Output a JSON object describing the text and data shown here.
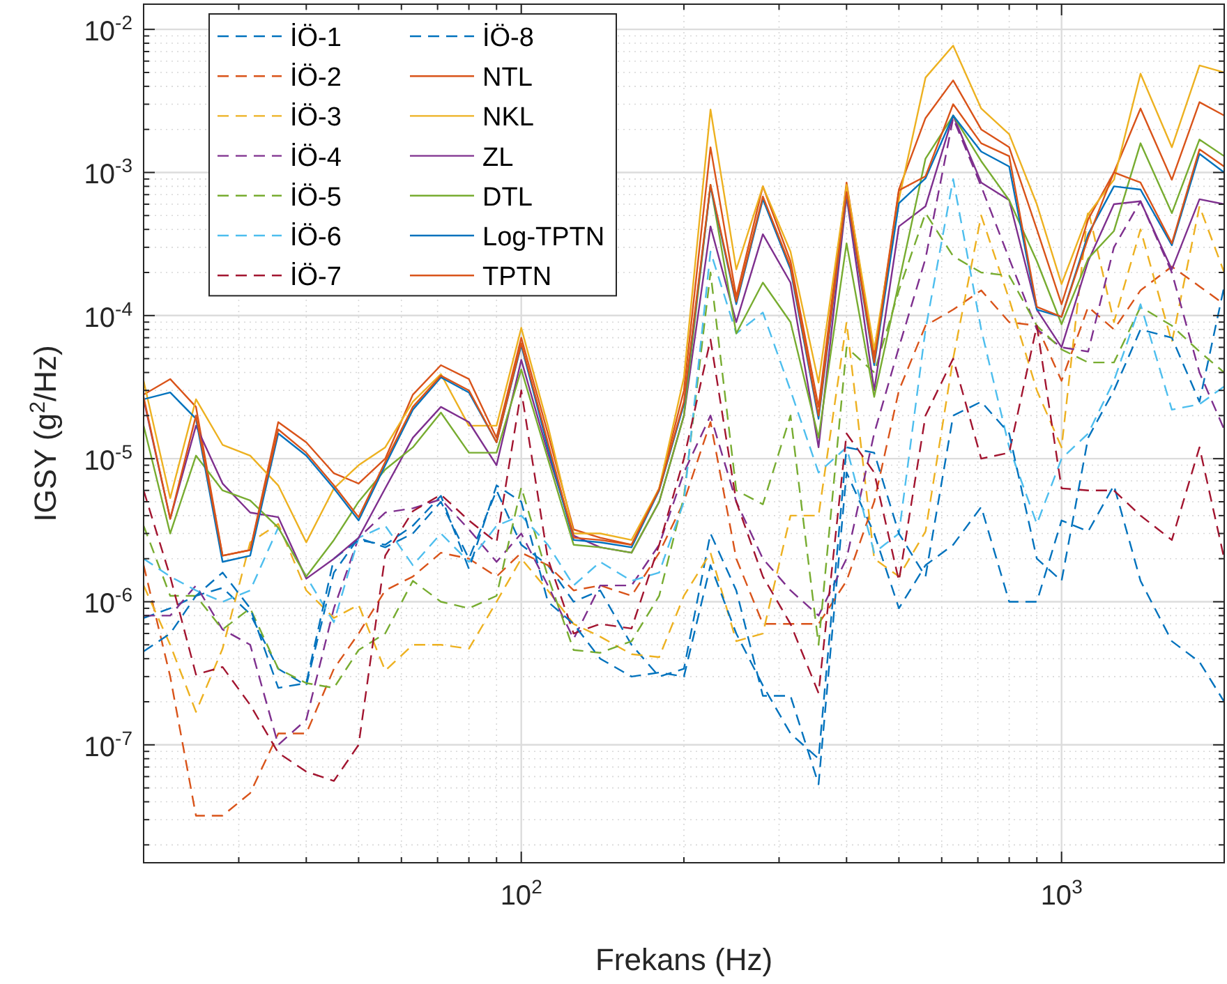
{
  "chart_data": {
    "type": "line",
    "xlabel": "Frekans (Hz)",
    "ylabel": "IGSY (g$^{2}$/Hz)",
    "log": "xy",
    "grid": true,
    "legend": "top left",
    "xlim": [
      20,
      2000
    ],
    "ylim": [
      1.5e-08,
      0.015
    ],
    "xticks": [
      {
        "value": 20,
        "label": null
      },
      {
        "value": 30,
        "label": null
      },
      {
        "value": 40,
        "label": null
      },
      {
        "value": 50,
        "label": null
      },
      {
        "value": 60,
        "label": null
      },
      {
        "value": 70,
        "label": null
      },
      {
        "value": 80,
        "label": null
      },
      {
        "value": 90,
        "label": null
      },
      {
        "value": 100,
        "label": "10$^{2}$"
      },
      {
        "value": 200,
        "label": null
      },
      {
        "value": 300,
        "label": null
      },
      {
        "value": 400,
        "label": null
      },
      {
        "value": 500,
        "label": null
      },
      {
        "value": 600,
        "label": null
      },
      {
        "value": 700,
        "label": null
      },
      {
        "value": 800,
        "label": null
      },
      {
        "value": 900,
        "label": null
      },
      {
        "value": 1000,
        "label": "10$^{3}$"
      },
      {
        "value": 2000,
        "label": null
      }
    ],
    "yticks": [
      {
        "value": 2e-08,
        "label": null
      },
      {
        "value": 3e-08,
        "label": null
      },
      {
        "value": 4e-08,
        "label": null
      },
      {
        "value": 5e-08,
        "label": null
      },
      {
        "value": 6e-08,
        "label": null
      },
      {
        "value": 7e-08,
        "label": null
      },
      {
        "value": 8e-08,
        "label": null
      },
      {
        "value": 9e-08,
        "label": null
      },
      {
        "value": 1e-07,
        "label": "10$^{-7}$"
      },
      {
        "value": 2e-07,
        "label": null
      },
      {
        "value": 3e-07,
        "label": null
      },
      {
        "value": 4e-07,
        "label": null
      },
      {
        "value": 5e-07,
        "label": null
      },
      {
        "value": 6e-07,
        "label": null
      },
      {
        "value": 7e-07,
        "label": null
      },
      {
        "value": 8e-07,
        "label": null
      },
      {
        "value": 9e-07,
        "label": null
      },
      {
        "value": 1e-06,
        "label": "10$^{-6}$"
      },
      {
        "value": 2e-06,
        "label": null
      },
      {
        "value": 3e-06,
        "label": null
      },
      {
        "value": 4e-06,
        "label": null
      },
      {
        "value": 5e-06,
        "label": null
      },
      {
        "value": 6e-06,
        "label": null
      },
      {
        "value": 7e-06,
        "label": null
      },
      {
        "value": 8e-06,
        "label": null
      },
      {
        "value": 9e-06,
        "label": null
      },
      {
        "value": 1e-05,
        "label": "10$^{-5}$"
      },
      {
        "value": 2e-05,
        "label": null
      },
      {
        "value": 3e-05,
        "label": null
      },
      {
        "value": 4e-05,
        "label": null
      },
      {
        "value": 5e-05,
        "label": null
      },
      {
        "value": 6e-05,
        "label": null
      },
      {
        "value": 7e-05,
        "label": null
      },
      {
        "value": 8e-05,
        "label": null
      },
      {
        "value": 9e-05,
        "label": null
      },
      {
        "value": 0.0001,
        "label": "10$^{-4}$"
      },
      {
        "value": 0.0002,
        "label": null
      },
      {
        "value": 0.0003,
        "label": null
      },
      {
        "value": 0.0004,
        "label": null
      },
      {
        "value": 0.0005,
        "label": null
      },
      {
        "value": 0.0006,
        "label": null
      },
      {
        "value": 0.0007,
        "label": null
      },
      {
        "value": 0.0008,
        "label": null
      },
      {
        "value": 0.0009,
        "label": null
      },
      {
        "value": 0.001,
        "label": "10$^{-3}$"
      },
      {
        "value": 0.002,
        "label": null
      },
      {
        "value": 0.003,
        "label": null
      },
      {
        "value": 0.004,
        "label": null
      },
      {
        "value": 0.005,
        "label": null
      },
      {
        "value": 0.006,
        "label": null
      },
      {
        "value": 0.007,
        "label": null
      },
      {
        "value": 0.008,
        "label": null
      },
      {
        "value": 0.009,
        "label": null
      },
      {
        "value": 0.01,
        "label": "10$^{-2}$"
      }
    ],
    "x": [
      20,
      22.4,
      25,
      28,
      31.5,
      35.5,
      40,
      45,
      50,
      56,
      63,
      71,
      80,
      90,
      100,
      112,
      125,
      140,
      160,
      180,
      200,
      224,
      250,
      280,
      315,
      355,
      400,
      450,
      500,
      560,
      630,
      710,
      800,
      900,
      1000,
      1120,
      1250,
      1400,
      1600,
      1800,
      2000
    ],
    "series": [
      {
        "name": "İÖ-1",
        "color": "#0072bd",
        "line_style": "dashed",
        "values": [
          7.7e-07,
          9e-07,
          1.1e-06,
          1.25e-06,
          8.2e-07,
          3.4e-07,
          2.6e-07,
          1.6e-06,
          2.8e-06,
          2.4e-06,
          3e-06,
          5e-06,
          2e-06,
          6e-06,
          2.5e-06,
          1.8e-06,
          1e-06,
          1.2e-06,
          5e-07,
          3e-07,
          3.4e-07,
          3e-06,
          1.2e-06,
          2.2e-07,
          2.2e-07,
          5.3e-08,
          8e-06,
          3e-06,
          9e-07,
          1.8e-06,
          2.5e-06,
          4.6e-06,
          1e-06,
          1e-06,
          3.7e-06,
          3.1e-06,
          6.5e-06,
          1.4e-06,
          5.3e-07,
          3.8e-07,
          2e-07
        ]
      },
      {
        "name": "İÖ-2",
        "color": "#d95319",
        "line_style": "dashed",
        "values": [
          1.8e-06,
          3e-07,
          3.2e-08,
          3.2e-08,
          4.6e-08,
          1.2e-07,
          1.2e-07,
          3.4e-07,
          6e-07,
          1.2e-06,
          1.5e-06,
          2.2e-06,
          2e-06,
          1.5e-06,
          2.2e-06,
          1.8e-06,
          1.2e-06,
          1.3e-06,
          1.1e-06,
          2.2e-06,
          5e-06,
          1.8e-05,
          2e-06,
          7e-07,
          7e-07,
          7e-07,
          1.4e-06,
          5e-06,
          3e-05,
          8.5e-05,
          0.00011,
          0.00015,
          9e-05,
          8.5e-05,
          3.5e-05,
          0.000115,
          8e-05,
          0.00015,
          0.00022,
          0.00016,
          0.00012
        ]
      },
      {
        "name": "İÖ-3",
        "color": "#edb120",
        "line_style": "dashed",
        "values": [
          1.3e-06,
          5e-07,
          1.7e-07,
          4.7e-07,
          2.6e-06,
          3.5e-06,
          1.2e-06,
          7.7e-07,
          9.5e-07,
          3.3e-07,
          5e-07,
          5e-07,
          4.7e-07,
          1e-06,
          2e-06,
          1.2e-06,
          7e-07,
          5.7e-07,
          4.3e-07,
          4.1e-07,
          1.1e-06,
          2.2e-06,
          5.3e-07,
          6e-07,
          4e-06,
          4e-06,
          9e-05,
          2e-06,
          1.5e-06,
          3.1e-06,
          5e-05,
          0.0005,
          0.00013,
          3e-05,
          1.2e-05,
          0.00055,
          9e-05,
          0.0004,
          6.5e-05,
          0.00058,
          0.0002
        ]
      },
      {
        "name": "İÖ-4",
        "color": "#7e2f8e",
        "line_style": "dashed",
        "values": [
          8e-07,
          8e-07,
          1.3e-06,
          6.4e-07,
          5e-07,
          1e-07,
          1.5e-07,
          9e-07,
          2.8e-06,
          4.2e-06,
          4.5e-06,
          5.2e-06,
          3.2e-06,
          1.9e-06,
          3e-06,
          1.3e-06,
          5.5e-07,
          1.3e-06,
          1.3e-06,
          2.5e-06,
          8e-06,
          2e-05,
          5e-06,
          2e-06,
          1.2e-06,
          8e-07,
          2e-06,
          1.5e-05,
          6e-05,
          0.00025,
          0.0024,
          0.0008,
          0.00025,
          8e-05,
          6e-05,
          5.6e-05,
          0.0003,
          0.00063,
          0.0002,
          4e-05,
          1.6e-05
        ]
      },
      {
        "name": "İÖ-5",
        "color": "#77ac30",
        "line_style": "dashed",
        "values": [
          3.4e-06,
          1.1e-06,
          1.1e-06,
          6.4e-07,
          9e-07,
          3.4e-07,
          2.7e-07,
          2.5e-07,
          4.6e-07,
          6e-07,
          1.4e-06,
          1e-06,
          9e-07,
          1.1e-06,
          6.3e-06,
          1.5e-06,
          4.6e-07,
          4.4e-07,
          5.3e-07,
          1.1e-06,
          5.4e-06,
          0.0002,
          6e-06,
          4.8e-06,
          2e-05,
          5e-07,
          6e-05,
          4e-05,
          0.00015,
          0.00052,
          0.00026,
          0.0002,
          0.00019,
          8.5e-05,
          5.8e-05,
          4.7e-05,
          4.7e-05,
          0.000115,
          8.5e-05,
          5.6e-05,
          4e-05
        ]
      },
      {
        "name": "İÖ-6",
        "color": "#4dbeee",
        "line_style": "dashed",
        "values": [
          2e-06,
          1.5e-06,
          1.2e-06,
          1e-06,
          1.2e-06,
          3.3e-06,
          1.5e-06,
          7.2e-07,
          2.8e-06,
          3.4e-06,
          1.8e-06,
          3e-06,
          1.9e-06,
          3.4e-06,
          4e-06,
          2.5e-06,
          1.3e-06,
          1.9e-06,
          1.4e-06,
          1.6e-06,
          5e-06,
          0.00028,
          7.5e-05,
          0.000105,
          3e-05,
          8e-06,
          1.2e-05,
          2.2e-06,
          3e-06,
          8e-05,
          0.0009,
          8e-05,
          1.2e-05,
          3.5e-06,
          1e-05,
          1.5e-05,
          3.5e-05,
          0.00012,
          2.2e-05,
          2.4e-05,
          3.2e-05
        ]
      },
      {
        "name": "İÖ-7",
        "color": "#a2142f",
        "line_style": "dashed",
        "values": [
          6e-06,
          1.5e-06,
          3.1e-07,
          3.5e-07,
          1.9e-07,
          8.8e-08,
          6.5e-08,
          5.6e-08,
          1e-07,
          2.1e-06,
          4.3e-06,
          5.6e-06,
          3.7e-06,
          2.6e-06,
          3e-05,
          2e-06,
          6e-07,
          7e-07,
          6.5e-07,
          2.5e-06,
          1e-05,
          6.8e-05,
          5e-06,
          1.5e-06,
          7e-07,
          2.3e-07,
          1.5e-05,
          8e-06,
          1.4e-06,
          2e-05,
          5e-05,
          1e-05,
          1.1e-05,
          8.5e-05,
          6.2e-06,
          6e-06,
          6e-06,
          4e-06,
          2.7e-06,
          1.2e-05,
          2e-06
        ]
      },
      {
        "name": "İÖ-8",
        "color": "#0072bd",
        "line_style": "dashed",
        "values": [
          4.5e-07,
          6e-07,
          1.1e-06,
          1.6e-06,
          9e-07,
          2.5e-07,
          2.7e-07,
          2e-06,
          2.7e-06,
          2.5e-06,
          3.4e-06,
          5.5e-06,
          1.7e-06,
          6.5e-06,
          5e-06,
          1e-06,
          7e-07,
          4e-07,
          3e-07,
          3.2e-07,
          3e-07,
          1.8e-06,
          6e-07,
          2.6e-07,
          1.2e-07,
          8e-08,
          1.2e-05,
          1.1e-05,
          3e-06,
          1.5e-06,
          2e-05,
          2.5e-05,
          1.5e-05,
          2e-06,
          1.4e-06,
          1.4e-05,
          3e-05,
          8e-05,
          7e-05,
          2.5e-05,
          0.00016
        ]
      },
      {
        "name": "NTL",
        "color": "#d95319",
        "line_style": "solid",
        "values": [
          2.8e-05,
          3.6e-05,
          2.3e-05,
          2.1e-06,
          2.3e-06,
          1.8e-05,
          1.3e-05,
          7.9e-06,
          6.7e-06,
          1e-05,
          2.8e-05,
          4.5e-05,
          3.6e-05,
          1.4e-05,
          7e-05,
          1.5e-05,
          3.2e-06,
          2.8e-06,
          2.5e-06,
          6.2e-06,
          3e-05,
          0.0015,
          0.000135,
          0.0008,
          0.00024,
          2.3e-05,
          0.00085,
          5.2e-05,
          0.00076,
          0.0024,
          0.0044,
          0.002,
          0.0015,
          0.0004,
          0.00012,
          0.00047,
          0.001,
          0.0028,
          0.00089,
          0.0031,
          0.0025
        ]
      },
      {
        "name": "NKL",
        "color": "#edb120",
        "line_style": "solid",
        "values": [
          3.5e-05,
          5.3e-06,
          2.6e-05,
          1.25e-05,
          1.05e-05,
          6.5e-06,
          2.6e-06,
          6.2e-06,
          9e-06,
          1.2e-05,
          2.5e-05,
          3.9e-05,
          1.7e-05,
          1.7e-05,
          8.2e-05,
          1.7e-05,
          3e-06,
          3e-06,
          2.7e-06,
          6.2e-06,
          3.7e-05,
          0.00275,
          0.00021,
          0.0008,
          0.00028,
          3.4e-05,
          0.00082,
          5.8e-05,
          0.00065,
          0.0046,
          0.0077,
          0.0028,
          0.00185,
          0.0006,
          0.000166,
          0.00051,
          0.00089,
          0.0049,
          0.0015,
          0.0056,
          0.005
        ]
      },
      {
        "name": "ZL",
        "color": "#7e2f8e",
        "line_style": "solid",
        "values": [
          2.6e-05,
          3.8e-06,
          1.7e-05,
          6.7e-06,
          4.2e-06,
          3.9e-06,
          1.45e-06,
          2e-06,
          2.8e-06,
          6.2e-06,
          1.4e-05,
          2.3e-05,
          1.8e-05,
          9e-06,
          4.9e-05,
          1.1e-05,
          2.9e-06,
          2.4e-06,
          2.2e-06,
          5e-06,
          2e-05,
          0.00042,
          9e-05,
          0.00037,
          0.00017,
          1.2e-05,
          0.00068,
          3e-05,
          0.00042,
          0.00058,
          0.0025,
          0.00085,
          0.00064,
          0.00011,
          6e-05,
          0.00024,
          0.0006,
          0.00063,
          0.00021,
          0.00065,
          0.0006
        ]
      },
      {
        "name": "DTL",
        "color": "#77ac30",
        "line_style": "solid",
        "values": [
          1.7e-05,
          3e-06,
          1.05e-05,
          6e-06,
          5.1e-06,
          3.3e-06,
          1.5e-06,
          2.7e-06,
          5e-06,
          8.4e-06,
          1.2e-05,
          2.1e-05,
          1.1e-05,
          1.1e-05,
          4.2e-05,
          1e-05,
          2.5e-06,
          2.4e-06,
          2.2e-06,
          5e-06,
          2e-05,
          0.00082,
          7.5e-05,
          0.00017,
          9e-05,
          1.4e-05,
          0.00032,
          2.7e-05,
          0.00017,
          0.00125,
          0.0025,
          0.0012,
          0.00064,
          0.00024,
          8.7e-05,
          0.00025,
          0.00039,
          0.0016,
          0.00052,
          0.0017,
          0.0013
        ]
      },
      {
        "name": "Log-TPTN",
        "color": "#0072bd",
        "line_style": "solid",
        "values": [
          2.6e-05,
          2.9e-05,
          1.9e-05,
          1.9e-06,
          2.1e-06,
          1.5e-05,
          1.05e-05,
          6.2e-06,
          3.7e-06,
          9e-06,
          2.2e-05,
          3.7e-05,
          2.9e-05,
          1.3e-05,
          6.2e-05,
          1.2e-05,
          2.7e-06,
          2.6e-06,
          2.4e-06,
          6e-06,
          2.4e-05,
          0.0008,
          0.00012,
          0.00065,
          0.00021,
          1.9e-05,
          0.00071,
          4.5e-05,
          0.00061,
          0.00091,
          0.0025,
          0.0014,
          0.0011,
          0.00011,
          9.8e-05,
          0.00037,
          0.0008,
          0.00076,
          0.00031,
          0.00135,
          0.001
        ]
      },
      {
        "name": "TPTN",
        "color": "#d95319",
        "line_style": "solid",
        "values": [
          2.7e-05,
          3.8e-06,
          2e-05,
          2.1e-06,
          2.3e-06,
          1.6e-05,
          1.1e-05,
          6.5e-06,
          3.9e-06,
          9.5e-06,
          2.3e-05,
          3.8e-05,
          3e-05,
          1.3e-05,
          6.4e-05,
          1.3e-05,
          2.8e-06,
          2.7e-06,
          2.5e-06,
          6.1e-06,
          2.5e-05,
          0.00082,
          0.000125,
          0.00068,
          0.00022,
          2e-05,
          0.00073,
          4.7e-05,
          0.00075,
          0.00094,
          0.003,
          0.0016,
          0.0013,
          0.000115,
          9.8e-05,
          0.00035,
          0.001,
          0.00085,
          0.00032,
          0.00145,
          0.0011
        ]
      }
    ]
  }
}
